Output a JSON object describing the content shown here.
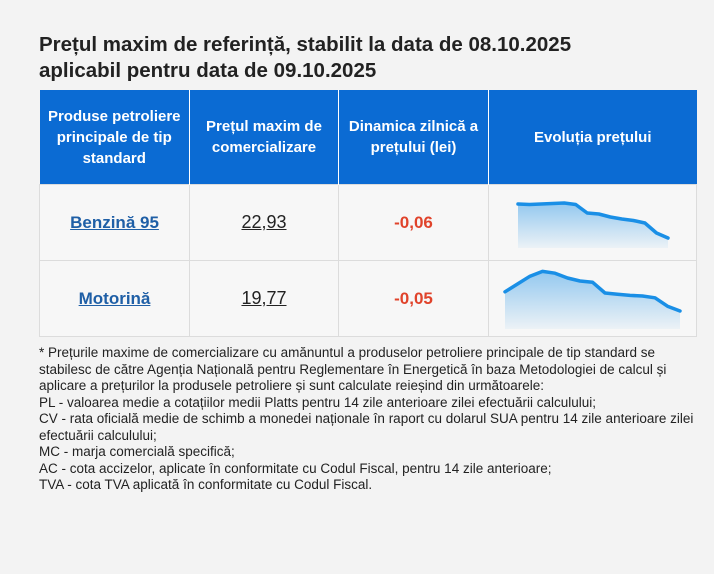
{
  "title_line1": "Prețul maxim de referință, stabilit la data de 08.10.2025",
  "title_line2": "aplicabil pentru data de 09.10.2025",
  "table": {
    "headers": [
      "Produse petroliere principale de tip standard",
      "Prețul maxim de comercializare",
      "Dinamica zilnică a prețului (lei)",
      "Evoluția prețului"
    ],
    "rows": [
      {
        "product": "Benzină 95",
        "price": "22,93",
        "delta": "-0,06",
        "trend": [
          0.88,
          0.87,
          0.88,
          0.89,
          0.9,
          0.87,
          0.7,
          0.68,
          0.62,
          0.58,
          0.55,
          0.5,
          0.3,
          0.2
        ],
        "trend_color": "#1a8fe6"
      },
      {
        "product": "Motorină",
        "price": "19,77",
        "delta": "-0,05",
        "trend": [
          0.62,
          0.75,
          0.88,
          0.96,
          0.93,
          0.85,
          0.8,
          0.78,
          0.6,
          0.58,
          0.56,
          0.55,
          0.52,
          0.38,
          0.3
        ],
        "trend_color": "#1a8fe6"
      }
    ]
  },
  "notes": [
    "* Prețurile maxime de comercializare cu amănuntul a produselor petroliere principale de tip standard se stabilesc de către Agenția Națională pentru Reglementare în Energetică în baza Metodologiei de calcul și aplicare a prețurilor la produsele petroliere și sunt calculate reieșind din următoarele:",
    "PL - valoarea medie a cotațiilor medii Platts pentru 14 zile anterioare zilei efectuării calculului;",
    "CV - rata oficială medie de schimb a monedei naționale în raport cu dolarul SUA pentru 14 zile anterioare zilei efectuării calculului;",
    "MC - marja comercială specifică;",
    "AC - cota accizelor, aplicate în conformitate cu Codul Fiscal, pentru 14 zile anterioare;",
    "TVA - cota TVA aplicată în conformitate cu Codul Fiscal."
  ]
}
